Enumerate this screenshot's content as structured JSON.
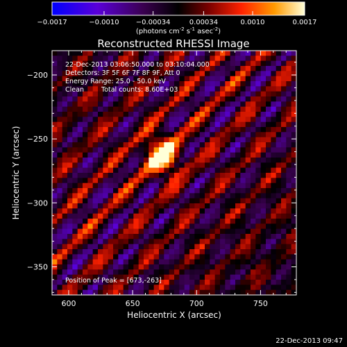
{
  "chart_data": {
    "type": "heatmap",
    "title": "Reconstructed RHESSI Image",
    "xlabel": "Heliocentric X (arcsec)",
    "ylabel": "Heliocentric Y (arcsec)",
    "xlim": [
      587,
      778
    ],
    "ylim": [
      -372,
      -181
    ],
    "xticks": [
      600,
      650,
      700,
      750
    ],
    "yticks": [
      -200,
      -250,
      -300,
      -350
    ],
    "colorbar": {
      "min": -0.0017,
      "max": 0.0017,
      "ticks": [
        "-0.0017",
        "-0.0010",
        "-0.00034",
        "0.00034",
        "0.0010",
        "0.0017"
      ],
      "label_pre": "(photons cm",
      "label_exp1": "-2",
      "label_mid": " s",
      "label_exp2": "-1",
      "label_mid2": " asec",
      "label_exp3": "-2",
      "label_post": ")",
      "colors": [
        "#0000ff",
        "#6600cc",
        "#330044",
        "#000000",
        "#880000",
        "#ff3300",
        "#ff9900",
        "#ffffcc"
      ]
    },
    "annotations": {
      "time_range": "22-Dec-2013 03:06:50.000 to 03:10:04.000",
      "detectors": "Detectors: 3F 5F 6F 7F 8F 9F, Att 0",
      "energy": "Energy Range: 25.0 - 50.0 keV",
      "method": "Clean",
      "counts": "Total counts: 8.60E+03",
      "peak": "Position of Peak = [673,-263]"
    },
    "peak": [
      673,
      -263
    ],
    "footer": "22-Dec-2013 09:47"
  }
}
